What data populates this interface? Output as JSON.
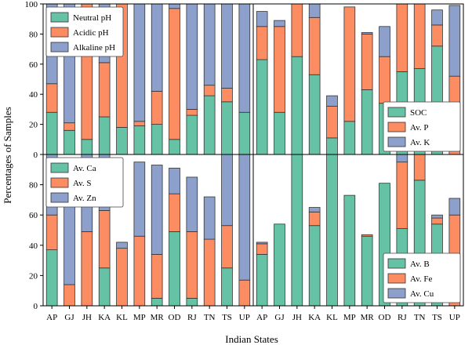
{
  "figure": {
    "xlabel": "Indian States",
    "ylabel": "Percentages of Samples"
  },
  "colors": {
    "green": "#66c2a5",
    "orange": "#fc8d62",
    "blue": "#8da0cb"
  },
  "chart_data": [
    {
      "type": "bar",
      "stacked": true,
      "panel": "top-left",
      "categories": [
        "AP",
        "GJ",
        "JH",
        "KA",
        "KL",
        "MP",
        "MR",
        "OD",
        "RJ",
        "TN",
        "TS",
        "UP"
      ],
      "ylim": [
        0,
        100
      ],
      "yticks": [
        0,
        20,
        40,
        60,
        80,
        100
      ],
      "legend_position": "top-left",
      "series": [
        {
          "name": "Neutral pH",
          "color": "#66c2a5",
          "values": [
            28,
            16,
            10,
            25,
            18,
            19,
            20,
            10,
            26,
            39,
            35,
            28
          ]
        },
        {
          "name": "Acidic pH",
          "color": "#fc8d62",
          "values": [
            19,
            5,
            90,
            36,
            82,
            3,
            22,
            87,
            4,
            7,
            9,
            0
          ]
        },
        {
          "name": "Alkaline pH",
          "color": "#8da0cb",
          "values": [
            53,
            79,
            0,
            39,
            0,
            78,
            58,
            3,
            70,
            54,
            56,
            72
          ]
        }
      ]
    },
    {
      "type": "bar",
      "stacked": true,
      "panel": "top-right",
      "categories": [
        "AP",
        "GJ",
        "JH",
        "KA",
        "KL",
        "MP",
        "MR",
        "OD",
        "RJ",
        "TN",
        "TS",
        "UP"
      ],
      "ylim": [
        0,
        100
      ],
      "yticks": [
        0,
        20,
        40,
        60,
        80,
        100
      ],
      "legend_position": "bottom-right",
      "series": [
        {
          "name": "SOC",
          "color": "#66c2a5",
          "values": [
            63,
            28,
            65,
            53,
            11,
            22,
            43,
            34,
            55,
            57,
            72,
            0
          ]
        },
        {
          "name": "Av. P",
          "color": "#fc8d62",
          "values": [
            22,
            57,
            35,
            38,
            21,
            76,
            37,
            31,
            45,
            43,
            14,
            52
          ]
        },
        {
          "name": "Av. K",
          "color": "#8da0cb",
          "values": [
            10,
            4,
            0,
            9,
            7,
            0,
            1,
            20,
            0,
            0,
            10,
            47
          ]
        }
      ]
    },
    {
      "type": "bar",
      "stacked": true,
      "panel": "bottom-left",
      "categories": [
        "AP",
        "GJ",
        "JH",
        "KA",
        "KL",
        "MP",
        "MR",
        "OD",
        "RJ",
        "TN",
        "TS",
        "UP"
      ],
      "ylim": [
        0,
        100
      ],
      "yticks": [
        0,
        20,
        40,
        60,
        80
      ],
      "legend_position": "top-left",
      "series": [
        {
          "name": "Av. Ca",
          "color": "#66c2a5",
          "values": [
            37,
            0,
            0,
            25,
            0,
            0,
            5,
            49,
            5,
            0,
            25,
            0
          ]
        },
        {
          "name": "Av. S",
          "color": "#fc8d62",
          "values": [
            23,
            14,
            49,
            38,
            38,
            46,
            29,
            25,
            44,
            44,
            28,
            17
          ]
        },
        {
          "name": "Av. Zn",
          "color": "#8da0cb",
          "values": [
            40,
            83,
            51,
            37,
            4,
            49,
            59,
            17,
            36,
            28,
            47,
            83
          ]
        }
      ]
    },
    {
      "type": "bar",
      "stacked": true,
      "panel": "bottom-right",
      "categories": [
        "AP",
        "GJ",
        "JH",
        "KA",
        "KL",
        "MP",
        "MR",
        "OD",
        "RJ",
        "TN",
        "TS",
        "UP"
      ],
      "ylim": [
        0,
        100
      ],
      "yticks": [
        0,
        20,
        40,
        60,
        80
      ],
      "legend_position": "bottom-right",
      "series": [
        {
          "name": "Av. B",
          "color": "#66c2a5",
          "values": [
            34,
            54,
            100,
            53,
            100,
            73,
            46,
            81,
            51,
            83,
            54,
            0
          ]
        },
        {
          "name": "Av. Fe",
          "color": "#fc8d62",
          "values": [
            7,
            0,
            0,
            9,
            0,
            0,
            1,
            0,
            44,
            17,
            4,
            60
          ]
        },
        {
          "name": "Av. Cu",
          "color": "#8da0cb",
          "values": [
            1,
            0,
            0,
            3,
            0,
            0,
            0,
            0,
            5,
            0,
            2,
            11
          ]
        }
      ]
    }
  ]
}
